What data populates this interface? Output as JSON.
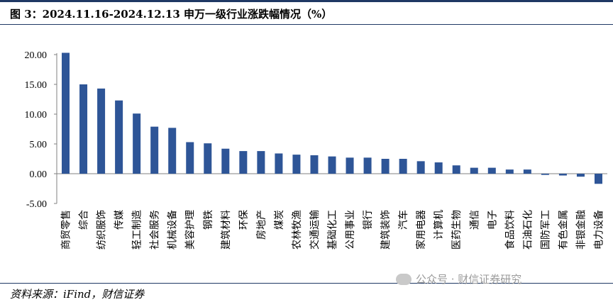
{
  "header": {
    "title": "图 3：2024.11.16-2024.12.13 申万一级行业涨跌幅情况（%）"
  },
  "footer": {
    "source": "资料来源：iFind，财信证券",
    "watermark": "公众号 · 财信证券研究"
  },
  "colors": {
    "bar": "#2e5597",
    "axis": "#808080",
    "title_rule": "#1f3864"
  },
  "chart_data": {
    "type": "bar",
    "title": "",
    "xlabel": "",
    "ylabel": "",
    "ylim": [
      -5,
      20
    ],
    "yticks": [
      "20.00",
      "15.00",
      "10.00",
      "5.00",
      "0.00",
      "-5.00"
    ],
    "ytick_values": [
      20,
      15,
      10,
      5,
      0,
      -5
    ],
    "grid": false,
    "legend": "none",
    "categories": [
      "商贸零售",
      "综合",
      "纺织服饰",
      "传媒",
      "轻工制造",
      "社会服务",
      "机械设备",
      "美容护理",
      "钢铁",
      "建筑材料",
      "环保",
      "房地产",
      "煤炭",
      "农林牧渔",
      "交通运输",
      "基础化工",
      "公用事业",
      "银行",
      "建筑装饰",
      "汽车",
      "家用电器",
      "计算机",
      "医药生物",
      "通信",
      "电子",
      "食品饮料",
      "石油石化",
      "国防军工",
      "有色金属",
      "非银金融",
      "电力设备"
    ],
    "values": [
      20.3,
      15.0,
      14.3,
      12.3,
      10.1,
      7.9,
      7.7,
      5.3,
      5.1,
      4.2,
      3.8,
      3.8,
      3.4,
      3.2,
      3.1,
      2.9,
      2.7,
      2.7,
      2.5,
      2.5,
      2.1,
      1.9,
      1.4,
      1.0,
      1.0,
      0.7,
      0.7,
      -0.2,
      -0.3,
      -0.5,
      -1.7
    ]
  }
}
